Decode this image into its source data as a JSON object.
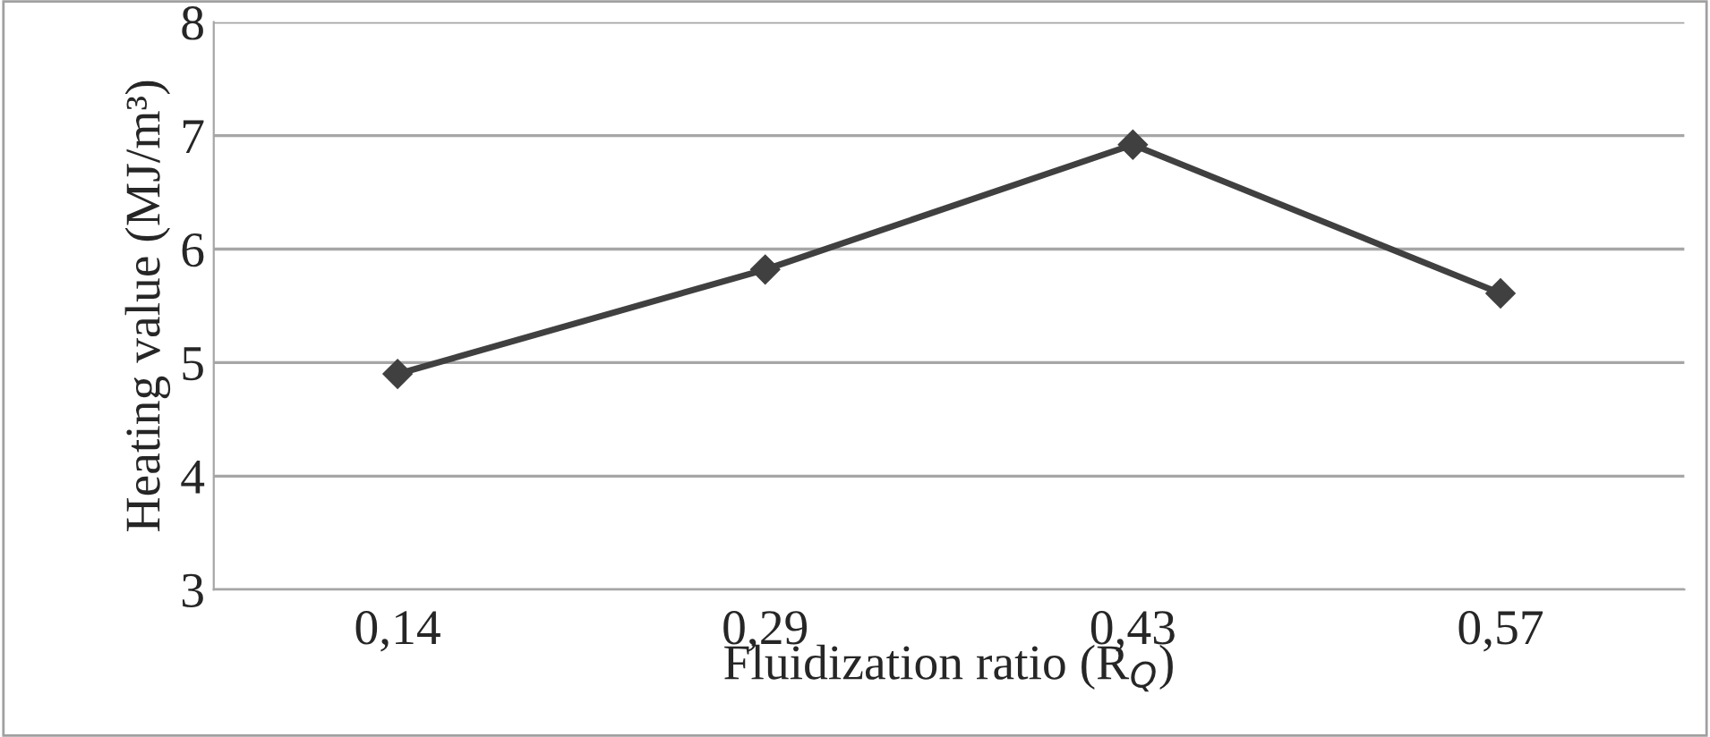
{
  "chart_data": {
    "type": "line",
    "xlabel": "Fluidization ratio (R$_{Q}$)",
    "ylabel": "Heating value (MJ/m³)",
    "categories": [
      "0,14",
      "0,29",
      "0,43",
      "0,57"
    ],
    "series": [
      {
        "color": "#404040",
        "values": [
          4.9,
          5.82,
          6.92,
          5.61
        ]
      }
    ],
    "ylim": [
      3,
      8
    ],
    "yticks": [
      3,
      4,
      5,
      6,
      7,
      8
    ],
    "grid": "y",
    "marker": "diamond",
    "line_style": "solid"
  }
}
